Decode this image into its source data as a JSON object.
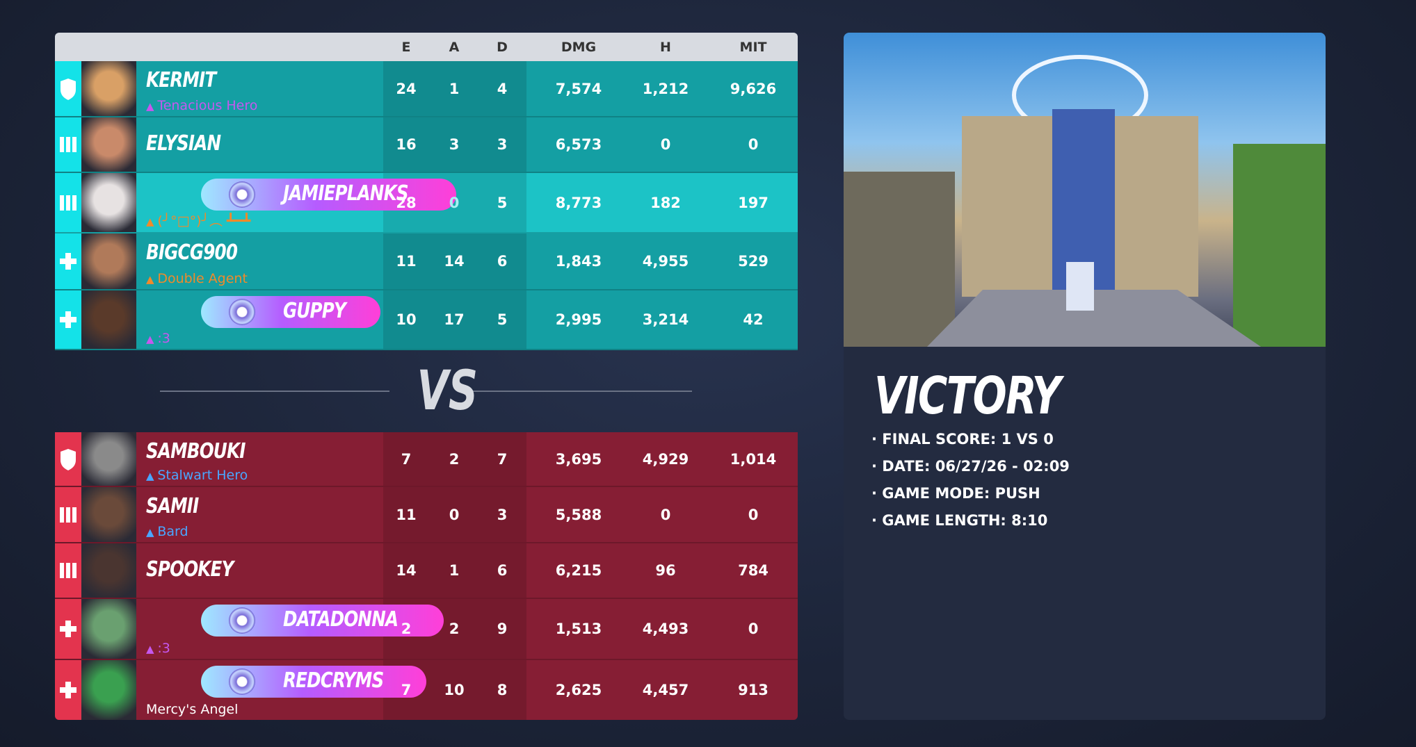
{
  "header": {
    "columns": [
      "E",
      "A",
      "D",
      "DMG",
      "H",
      "MIT"
    ]
  },
  "teams": [
    {
      "players": [
        {
          "name": "KERMIT",
          "subtitle": "Tenacious Hero",
          "stats": [
            "24",
            "1",
            "4",
            "7,574",
            "1,212",
            "9,626"
          ]
        },
        {
          "name": "ELYSIAN",
          "stats": [
            "16",
            "3",
            "3",
            "6,573",
            "0",
            "0"
          ]
        },
        {
          "name": "JAMIEPLANKS",
          "subtitle": "(╯°□°)╯︵ ┻━┻",
          "stats": [
            "28",
            "0",
            "5",
            "8,773",
            "182",
            "197"
          ]
        },
        {
          "name": "BIGCG900",
          "subtitle": "Double Agent",
          "stats": [
            "11",
            "14",
            "6",
            "1,843",
            "4,955",
            "529"
          ]
        },
        {
          "name": "GUPPY",
          "subtitle": ":3",
          "stats": [
            "10",
            "17",
            "5",
            "2,995",
            "3,214",
            "42"
          ]
        }
      ]
    },
    {
      "players": [
        {
          "name": "SAMBOUKI",
          "subtitle": "Stalwart Hero",
          "stats": [
            "7",
            "2",
            "7",
            "3,695",
            "4,929",
            "1,014"
          ]
        },
        {
          "name": "SAMII",
          "subtitle": "Bard",
          "stats": [
            "11",
            "0",
            "3",
            "5,588",
            "0",
            "0"
          ]
        },
        {
          "name": "SPOOKEY",
          "stats": [
            "14",
            "1",
            "6",
            "6,215",
            "96",
            "784"
          ]
        },
        {
          "name": "DATADONNA",
          "subtitle": ":3",
          "stats": [
            "2",
            "2",
            "9",
            "1,513",
            "4,493",
            "0"
          ]
        },
        {
          "name": "REDCRYMS",
          "subtitle": "Mercy's Angel",
          "stats": [
            "7",
            "10",
            "8",
            "2,625",
            "4,457",
            "913"
          ]
        }
      ]
    }
  ],
  "vs": "VS",
  "summary": {
    "result": "VICTORY",
    "details": [
      "· FINAL SCORE: 1 VS 0",
      "· DATE: 06/27/26 - 02:09",
      "· GAME MODE: PUSH",
      "· GAME LENGTH: 8:10"
    ]
  }
}
